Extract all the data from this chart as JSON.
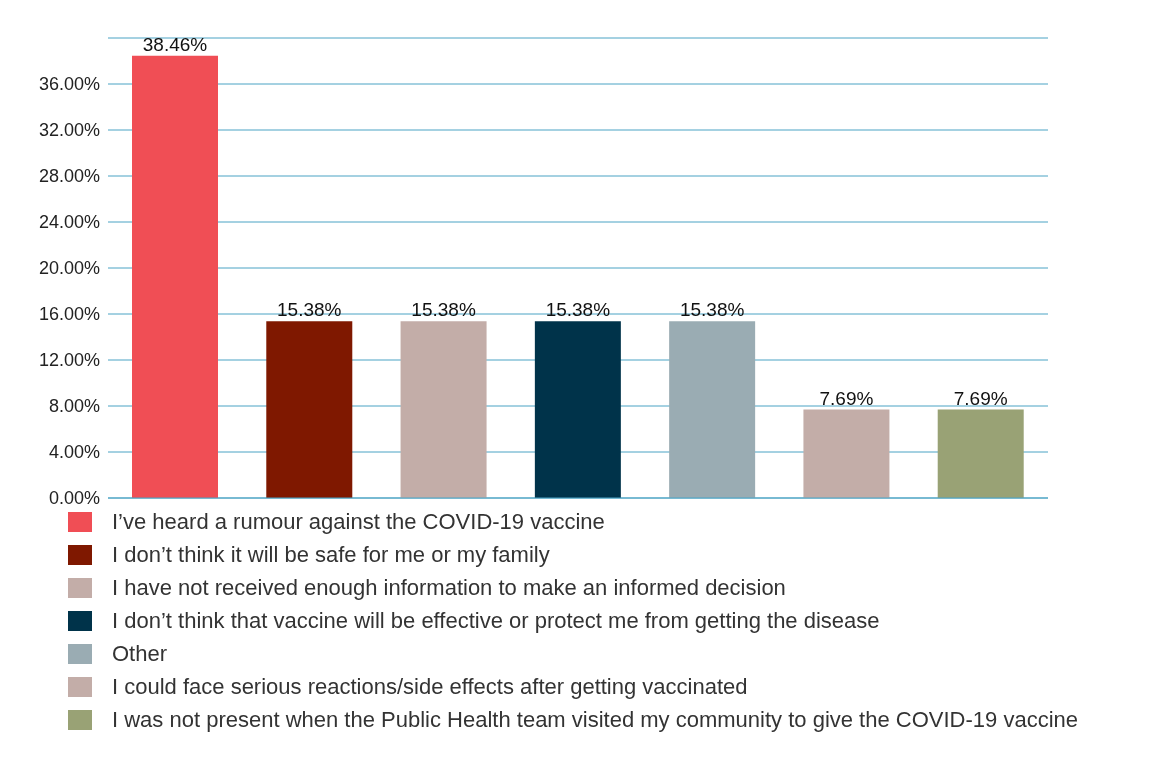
{
  "chart_data": {
    "type": "bar",
    "stacked": true,
    "categories": [
      null,
      null,
      null,
      null,
      null,
      null,
      null
    ],
    "series": [
      {
        "name": "I’ve heard a rumour against the COVID-19 vaccine",
        "color": "#f04e55",
        "values": [
          38.46,
          null,
          null,
          null,
          null,
          null,
          null
        ],
        "value_labels": [
          "38.46%",
          null,
          null,
          null,
          null,
          null,
          null
        ]
      },
      {
        "name": "I don’t think it will be safe for me or my family",
        "color": "#7f1800",
        "values": [
          null,
          15.38,
          null,
          null,
          null,
          null,
          null
        ],
        "value_labels": [
          null,
          "15.38%",
          null,
          null,
          null,
          null,
          null
        ]
      },
      {
        "name": "I have not received enough information to make an informed decision",
        "color": "#c3ada8",
        "values": [
          null,
          null,
          15.38,
          null,
          null,
          null,
          null
        ],
        "value_labels": [
          null,
          null,
          "15.38%",
          null,
          null,
          null,
          null
        ]
      },
      {
        "name": "I don’t  think that vaccine will be effective or protect me from getting the disease",
        "color": "#00334a",
        "values": [
          null,
          null,
          null,
          15.38,
          null,
          null,
          null
        ],
        "value_labels": [
          null,
          null,
          null,
          "15.38%",
          null,
          null,
          null
        ]
      },
      {
        "name": "Other",
        "color": "#9aacb3",
        "values": [
          null,
          null,
          null,
          null,
          15.38,
          null,
          null
        ],
        "value_labels": [
          null,
          null,
          null,
          null,
          "15.38%",
          null,
          null
        ]
      },
      {
        "name": "I could face serious reactions/side effects after getting vaccinated",
        "color": "#c3ada8",
        "values": [
          null,
          null,
          null,
          null,
          null,
          7.69,
          null
        ],
        "value_labels": [
          null,
          null,
          null,
          null,
          null,
          "7.69%",
          null
        ]
      },
      {
        "name": "I was not present when the Public Health team visited my community to give the COVID-19 vaccine",
        "color": "#99a275",
        "values": [
          null,
          null,
          null,
          null,
          null,
          null,
          7.69
        ],
        "value_labels": [
          null,
          null,
          null,
          null,
          null,
          null,
          "7.69%"
        ]
      }
    ],
    "ylim": [
      0,
      40
    ],
    "yticks": [
      {
        "value": 0,
        "label": "0.00%"
      },
      {
        "value": 4,
        "label": "4.00%"
      },
      {
        "value": 8,
        "label": "8.00%"
      },
      {
        "value": 12,
        "label": "12.00%"
      },
      {
        "value": 16,
        "label": "16.00%"
      },
      {
        "value": 20,
        "label": "20.00%"
      },
      {
        "value": 24,
        "label": "24.00%"
      },
      {
        "value": 28,
        "label": "28.00%"
      },
      {
        "value": 32,
        "label": "32.00%"
      },
      {
        "value": 36,
        "label": "36.00%"
      }
    ],
    "grid": "y",
    "legend": "bottom",
    "tick_labels": "y"
  }
}
